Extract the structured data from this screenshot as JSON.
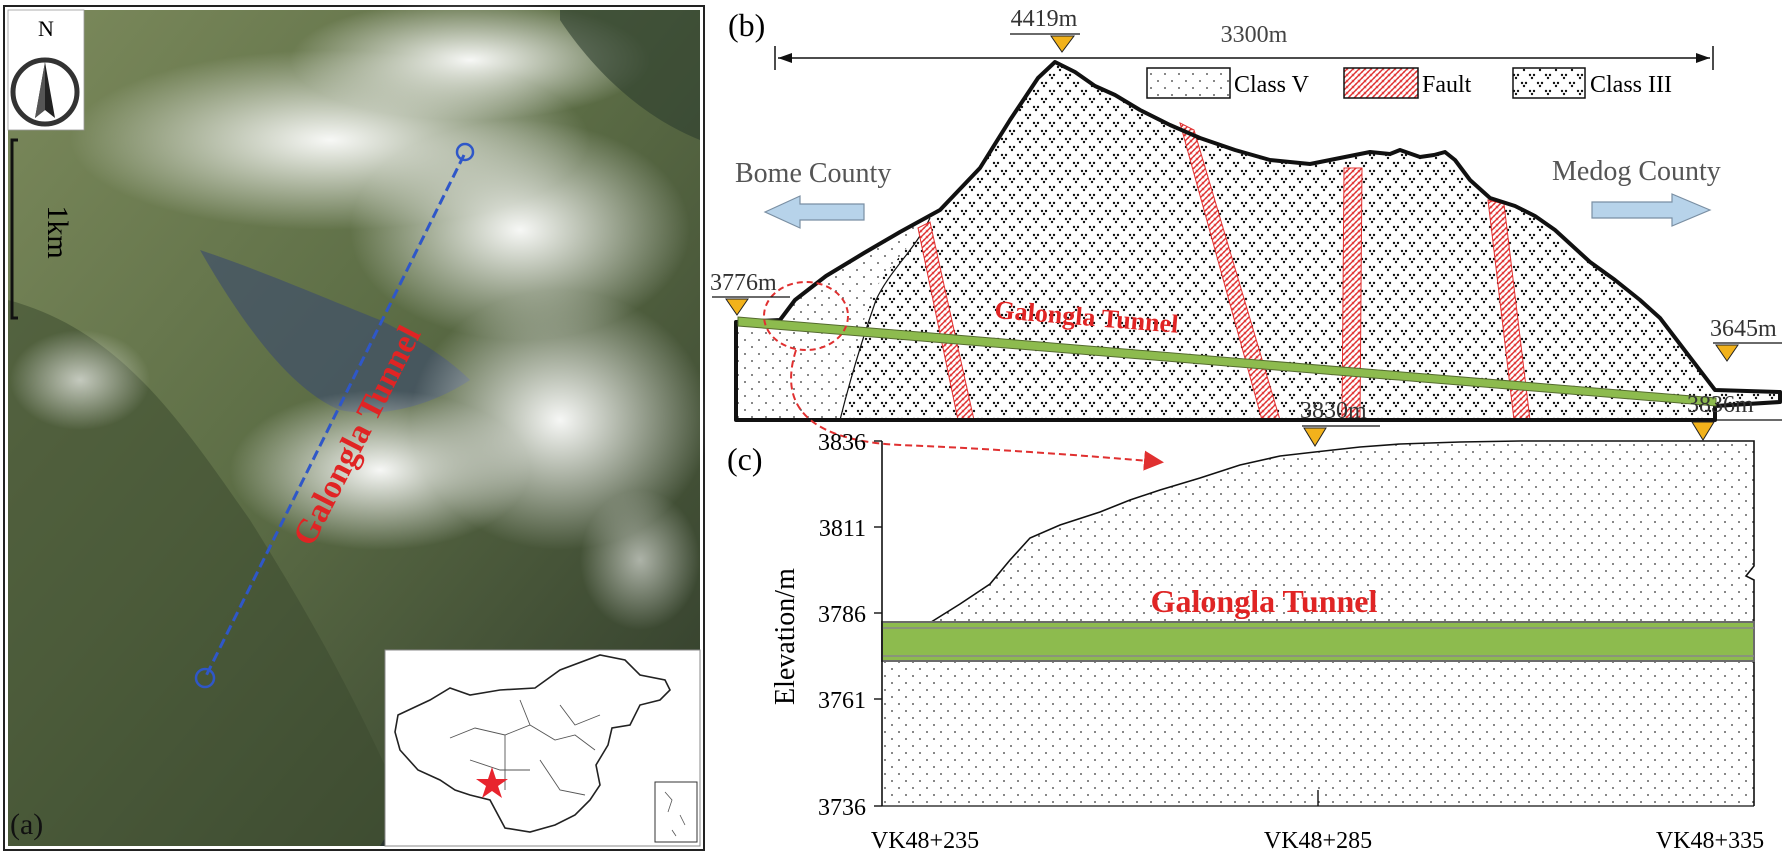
{
  "panel_a": {
    "label": "(a)",
    "north_label": "N",
    "scale_label": "1km",
    "tunnel_label": "Galongla Tunnel"
  },
  "panel_b": {
    "label": "(b)",
    "length_label": "3300m",
    "peak_elevation": "4419m",
    "left_portal_elevation": "3776m",
    "right_portal_elevation": "3645m",
    "left_direction": "Bome County",
    "right_direction": "Medog County",
    "tunnel_label": "Galongla Tunnel",
    "legend": [
      {
        "label": "Class V",
        "pattern": "class-v"
      },
      {
        "label": "Fault",
        "pattern": "fault"
      },
      {
        "label": "Class III",
        "pattern": "class-iii"
      }
    ]
  },
  "panel_c": {
    "label": "(c)",
    "ylabel": "Elevation/m",
    "y_ticks": [
      "3836",
      "3811",
      "3786",
      "3761",
      "3736"
    ],
    "x_ticks": [
      "VK48+235",
      "VK48+285",
      "VK48+335"
    ],
    "marker_mid": "3830m",
    "marker_right": "3836m",
    "tunnel_label": "Galongla Tunnel"
  },
  "colors": {
    "tunnel_green": "#8dbb4e",
    "marker_orange": "#f2b21b",
    "arrow_blue": "#b7d3ea",
    "fault_red": "#e03030",
    "label_red": "#e02424",
    "route_blue": "#2f57c8"
  }
}
